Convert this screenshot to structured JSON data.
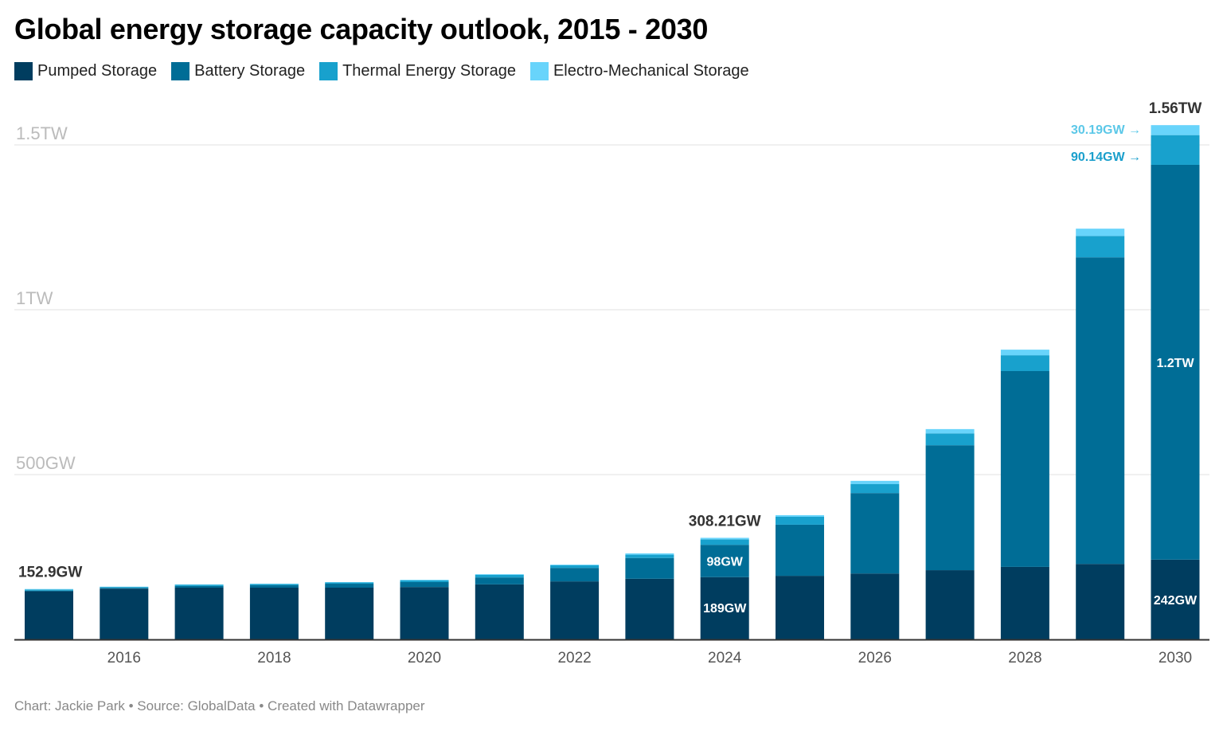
{
  "title": "Global energy storage capacity outlook, 2015 - 2030",
  "footer": "Chart: Jackie Park • Source: GlobalData • Created with Datawrapper",
  "chart_data": {
    "type": "bar",
    "stacked": true,
    "title": "Global energy storage capacity outlook, 2015 - 2030",
    "xlabel": "",
    "ylabel": "",
    "unit": "GW",
    "ylim": [
      0,
      1560
    ],
    "grid": true,
    "legend_position": "top-left",
    "categories": [
      "2015",
      "2016",
      "2017",
      "2018",
      "2019",
      "2020",
      "2021",
      "2022",
      "2023",
      "2024",
      "2025",
      "2026",
      "2027",
      "2028",
      "2029",
      "2030"
    ],
    "x_tick_labels": [
      "2016",
      "2018",
      "2020",
      "2022",
      "2024",
      "2026",
      "2028",
      "2030"
    ],
    "y_ticks": [
      {
        "value": 500,
        "label": "500GW"
      },
      {
        "value": 1000,
        "label": "1TW"
      },
      {
        "value": 1500,
        "label": "1.5TW"
      }
    ],
    "series": [
      {
        "name": "Pumped Storage",
        "color": "#003d5f",
        "values": [
          146,
          154,
          157,
          157,
          157,
          159,
          167,
          176,
          184,
          189,
          193,
          200,
          210,
          220,
          229,
          242
        ]
      },
      {
        "name": "Battery Storage",
        "color": "#006d96",
        "values": [
          2,
          2,
          5,
          8,
          12,
          15,
          21,
          41,
          63,
          98,
          155,
          244,
          379,
          594,
          930,
          1197.67
        ]
      },
      {
        "name": "Thermal Energy Storage",
        "color": "#18a1cd",
        "values": [
          3.5,
          3,
          4,
          3,
          4,
          5,
          8,
          8,
          10,
          16.5,
          24,
          27,
          36,
          48,
          65,
          90.14
        ]
      },
      {
        "name": "Electro-Mechanical Storage",
        "color": "#68d4fb",
        "values": [
          1.4,
          1,
          1,
          1,
          1,
          2,
          2,
          2,
          4,
          4.71,
          5,
          10,
          13,
          17,
          22,
          30.19
        ]
      }
    ],
    "annotations": [
      {
        "category": "2015",
        "type": "total",
        "text": "152.9GW"
      },
      {
        "category": "2024",
        "type": "total",
        "text": "308.21GW"
      },
      {
        "category": "2024",
        "type": "segment",
        "series": 0,
        "text": "189GW"
      },
      {
        "category": "2024",
        "type": "segment",
        "series": 1,
        "text": "98GW"
      },
      {
        "category": "2030",
        "type": "total",
        "text": "1.56TW"
      },
      {
        "category": "2030",
        "type": "segment",
        "series": 0,
        "text": "242GW"
      },
      {
        "category": "2030",
        "type": "segment",
        "series": 1,
        "text": "1.2TW"
      },
      {
        "category": "2030",
        "type": "arrow",
        "series": 2,
        "text": "90.14GW →"
      },
      {
        "category": "2030",
        "type": "arrow",
        "series": 3,
        "text": "30.19GW →"
      }
    ]
  }
}
